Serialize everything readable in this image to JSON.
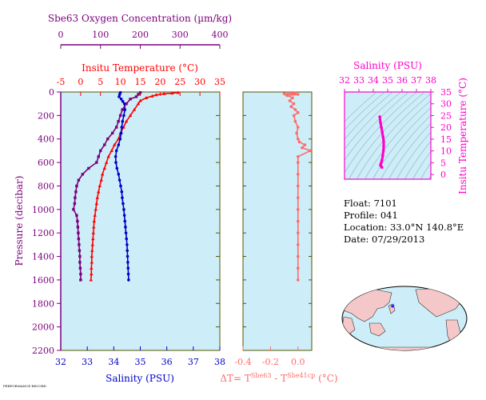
{
  "colors": {
    "oxygen": "#7b007b",
    "temperature": "#ff0000",
    "salinity": "#0000cc",
    "difference": "#ff6b6b",
    "diagram": "#ff00cc",
    "panel_bg": "#cdeef8",
    "frame": "#555500"
  },
  "chart_data": [
    {
      "type": "line",
      "title": "",
      "ylabel": "Pressure (decibar)",
      "ylim": [
        2200,
        0
      ],
      "y_ticks": [
        "0",
        "200",
        "400",
        "600",
        "800",
        "1000",
        "1200",
        "1400",
        "1600",
        "1800",
        "2000",
        "2200"
      ],
      "axes": {
        "oxygen": {
          "label": "Sbe63 Oxygen Concentration (µm/kg)",
          "range": [
            0,
            400
          ],
          "ticks": [
            "0",
            "100",
            "200",
            "300",
            "400"
          ]
        },
        "temperature": {
          "label": "Insitu Temperature (°C)",
          "range": [
            -5,
            35
          ],
          "ticks": [
            "-5",
            "0",
            "5",
            "10",
            "15",
            "20",
            "25",
            "30",
            "35"
          ]
        },
        "salinity": {
          "label": "Salinity (PSU)",
          "range": [
            32,
            38
          ],
          "ticks": [
            "32",
            "33",
            "34",
            "35",
            "36",
            "37",
            "38"
          ]
        }
      },
      "series": [
        {
          "key": "temperature",
          "marker": "triangle",
          "points": [
            [
              24.5,
              5
            ],
            [
              23,
              10
            ],
            [
              21,
              15
            ],
            [
              19,
              25
            ],
            [
              18,
              35
            ],
            [
              16.5,
              50
            ],
            [
              15,
              75
            ],
            [
              14.5,
              100
            ],
            [
              13.5,
              150
            ],
            [
              12.5,
              200
            ],
            [
              11.5,
              250
            ],
            [
              10.8,
              300
            ],
            [
              10,
              350
            ],
            [
              9.5,
              400
            ],
            [
              8.5,
              450
            ],
            [
              7.8,
              500
            ],
            [
              7,
              550
            ],
            [
              6.5,
              600
            ],
            [
              6,
              650
            ],
            [
              5.5,
              700
            ],
            [
              5.2,
              750
            ],
            [
              4.8,
              800
            ],
            [
              4.5,
              850
            ],
            [
              4.2,
              900
            ],
            [
              4,
              950
            ],
            [
              3.8,
              1000
            ],
            [
              3.6,
              1050
            ],
            [
              3.4,
              1100
            ],
            [
              3.3,
              1150
            ],
            [
              3.2,
              1200
            ],
            [
              3.1,
              1250
            ],
            [
              3,
              1300
            ],
            [
              2.9,
              1350
            ],
            [
              2.8,
              1400
            ],
            [
              2.8,
              1450
            ],
            [
              2.7,
              1500
            ],
            [
              2.7,
              1550
            ],
            [
              2.6,
              1600
            ]
          ]
        },
        {
          "key": "salinity",
          "marker": "circle",
          "points": [
            [
              34.25,
              5
            ],
            [
              34.22,
              20
            ],
            [
              34.2,
              40
            ],
            [
              34.28,
              60
            ],
            [
              34.34,
              80
            ],
            [
              34.4,
              100
            ],
            [
              34.42,
              150
            ],
            [
              34.38,
              200
            ],
            [
              34.33,
              250
            ],
            [
              34.3,
              300
            ],
            [
              34.28,
              350
            ],
            [
              34.24,
              400
            ],
            [
              34.18,
              450
            ],
            [
              34.1,
              500
            ],
            [
              34.07,
              550
            ],
            [
              34.08,
              600
            ],
            [
              34.12,
              650
            ],
            [
              34.18,
              700
            ],
            [
              34.22,
              750
            ],
            [
              34.26,
              800
            ],
            [
              34.3,
              850
            ],
            [
              34.32,
              900
            ],
            [
              34.35,
              950
            ],
            [
              34.38,
              1000
            ],
            [
              34.4,
              1050
            ],
            [
              34.42,
              1100
            ],
            [
              34.44,
              1150
            ],
            [
              34.46,
              1200
            ],
            [
              34.48,
              1250
            ],
            [
              34.5,
              1300
            ],
            [
              34.51,
              1350
            ],
            [
              34.52,
              1400
            ],
            [
              34.53,
              1450
            ],
            [
              34.54,
              1500
            ],
            [
              34.55,
              1550
            ],
            [
              34.56,
              1600
            ]
          ]
        },
        {
          "key": "oxygen",
          "marker": "square",
          "points": [
            [
              200,
              5
            ],
            [
              195,
              20
            ],
            [
              190,
              40
            ],
            [
              175,
              60
            ],
            [
              165,
              100
            ],
            [
              155,
              150
            ],
            [
              150,
              200
            ],
            [
              145,
              250
            ],
            [
              140,
              300
            ],
            [
              130,
              350
            ],
            [
              118,
              400
            ],
            [
              110,
              450
            ],
            [
              100,
              500
            ],
            [
              95,
              550
            ],
            [
              90,
              600
            ],
            [
              70,
              650
            ],
            [
              55,
              700
            ],
            [
              45,
              750
            ],
            [
              40,
              800
            ],
            [
              38,
              850
            ],
            [
              36,
              900
            ],
            [
              35,
              950
            ],
            [
              32,
              1000
            ],
            [
              40,
              1050
            ],
            [
              42,
              1100
            ],
            [
              43,
              1150
            ],
            [
              44,
              1200
            ],
            [
              45,
              1250
            ],
            [
              46,
              1300
            ],
            [
              47,
              1350
            ],
            [
              48,
              1400
            ],
            [
              48,
              1450
            ],
            [
              49,
              1500
            ],
            [
              50,
              1550
            ],
            [
              50,
              1600
            ]
          ]
        }
      ]
    },
    {
      "type": "line",
      "title": "",
      "xlabel": "ΔT= T",
      "xlabel_parts": [
        "ΔT= T",
        "Sbe63",
        " - T",
        "Sbe41cp",
        " (°C)"
      ],
      "xlim": [
        -0.4,
        0.1
      ],
      "x_ticks": [
        "-0.4",
        "-0.2",
        "0.0"
      ],
      "ylim": [
        2200,
        0
      ],
      "series": [
        {
          "key": "difference",
          "marker": "circle",
          "points": [
            [
              -0.05,
              5
            ],
            [
              -0.02,
              10
            ],
            [
              -0.1,
              15
            ],
            [
              0.0,
              20
            ],
            [
              -0.08,
              30
            ],
            [
              -0.04,
              50
            ],
            [
              -0.06,
              75
            ],
            [
              -0.03,
              100
            ],
            [
              -0.05,
              125
            ],
            [
              -0.02,
              150
            ],
            [
              0.0,
              175
            ],
            [
              -0.03,
              200
            ],
            [
              -0.02,
              250
            ],
            [
              0.0,
              300
            ],
            [
              -0.01,
              350
            ],
            [
              0.0,
              400
            ],
            [
              0.01,
              425
            ],
            [
              0.05,
              450
            ],
            [
              0.03,
              475
            ],
            [
              0.09,
              500
            ],
            [
              0.0,
              550
            ],
            [
              0.0,
              600
            ],
            [
              0.0,
              700
            ],
            [
              0.0,
              800
            ],
            [
              0.0,
              900
            ],
            [
              0.0,
              1000
            ],
            [
              0.0,
              1100
            ],
            [
              0.0,
              1200
            ],
            [
              0.0,
              1300
            ],
            [
              0.0,
              1400
            ],
            [
              0.0,
              1500
            ],
            [
              0.0,
              1600
            ]
          ]
        }
      ]
    },
    {
      "type": "line",
      "title": "",
      "xlabel": "Salinity (PSU)",
      "ylabel": "Insitu Temperature (°C)",
      "xlim": [
        32,
        38
      ],
      "ylim": [
        -2,
        35
      ],
      "x_ticks": [
        "32",
        "33",
        "34",
        "35",
        "36",
        "37",
        "38"
      ],
      "y_ticks": [
        "0",
        "5",
        "10",
        "15",
        "20",
        "25",
        "30",
        "35"
      ],
      "series": [
        {
          "key": "ts",
          "points": [
            [
              34.45,
              24.5
            ],
            [
              34.5,
              22
            ],
            [
              34.56,
              20
            ],
            [
              34.62,
              18
            ],
            [
              34.68,
              16
            ],
            [
              34.72,
              14
            ],
            [
              34.72,
              12
            ],
            [
              34.7,
              10
            ],
            [
              34.66,
              8
            ],
            [
              34.6,
              6
            ],
            [
              34.55,
              5
            ],
            [
              34.5,
              4
            ],
            [
              34.55,
              3.5
            ],
            [
              34.6,
              3
            ]
          ]
        }
      ]
    }
  ],
  "float_info": {
    "float": "Float:  7101",
    "profile": "Profile:  041",
    "location": "Location:  33.0°N  140.8°E",
    "date": "Date:  07/29/2013"
  },
  "footer_note": "PERFORMANCE RECORD"
}
